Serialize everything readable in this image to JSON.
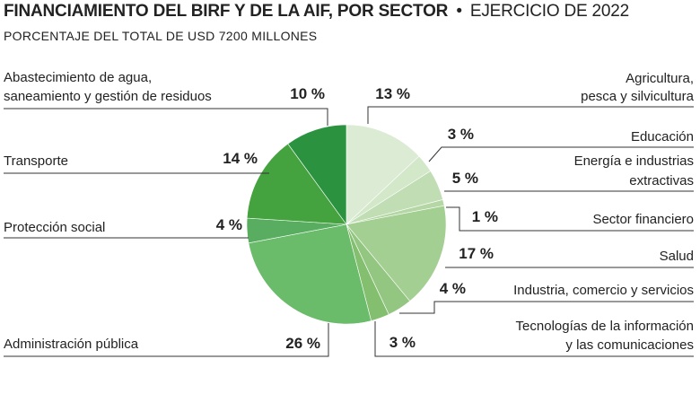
{
  "header": {
    "title_bold": "FINANCIAMIENTO DEL BIRF Y DE LA AIF, POR SECTOR",
    "title_separator": "•",
    "title_regular": "EJERCICIO DE 2022",
    "subtitle": "PORCENTAJE DEL TOTAL DE USD 7200 MILLONES"
  },
  "chart_data": {
    "type": "pie",
    "title": "FINANCIAMIENTO DEL BIRF Y DE LA AIF, POR SECTOR • EJERCICIO DE 2022",
    "subtitle": "PORCENTAJE DEL TOTAL DE USD 7200 MILLONES",
    "slices": [
      {
        "label": "Agricultura, pesca y silvicultura",
        "label_lines": [
          "Agricultura,",
          "pesca y silvicultura"
        ],
        "value": 13,
        "value_label": "13 %",
        "color": "#dcebd4"
      },
      {
        "label": "Educación",
        "label_lines": [
          "Educación"
        ],
        "value": 3,
        "value_label": "3 %",
        "color": "#d3e7c9"
      },
      {
        "label": "Energía e industrias extractivas",
        "label_lines": [
          "Energía e industrias",
          "extractivas"
        ],
        "value": 5,
        "value_label": "5 %",
        "color": "#c0ddb3"
      },
      {
        "label": "Sector financiero",
        "label_lines": [
          "Sector financiero"
        ],
        "value": 1,
        "value_label": "1 %",
        "color": "#b5d7a6"
      },
      {
        "label": "Salud",
        "label_lines": [
          "Salud"
        ],
        "value": 17,
        "value_label": "17 %",
        "color": "#a4cf92"
      },
      {
        "label": "Industria, comercio y servicios",
        "label_lines": [
          "Industria, comercio y servicios"
        ],
        "value": 4,
        "value_label": "4 %",
        "color": "#93c680"
      },
      {
        "label": "Tecnologías de la información y las comunicaciones",
        "label_lines": [
          "Tecnologías de la información",
          "y las comunicaciones"
        ],
        "value": 3,
        "value_label": "3 %",
        "color": "#84bf70"
      },
      {
        "label": "Administración pública",
        "label_lines": [
          "Administración pública"
        ],
        "value": 26,
        "value_label": "26 %",
        "color": "#6abb6a"
      },
      {
        "label": "Protección social",
        "label_lines": [
          "Protección social"
        ],
        "value": 4,
        "value_label": "4 %",
        "color": "#58ad60"
      },
      {
        "label": "Transporte",
        "label_lines": [
          "Transporte"
        ],
        "value": 14,
        "value_label": "14 %",
        "color": "#45a33f"
      },
      {
        "label": "Abastecimiento de agua, saneamiento y gestión de residuos",
        "label_lines": [
          "Abastecimiento de agua,",
          "saneamiento y gestión de residuos"
        ],
        "value": 10,
        "value_label": "10 %",
        "color": "#2b9340"
      }
    ]
  }
}
